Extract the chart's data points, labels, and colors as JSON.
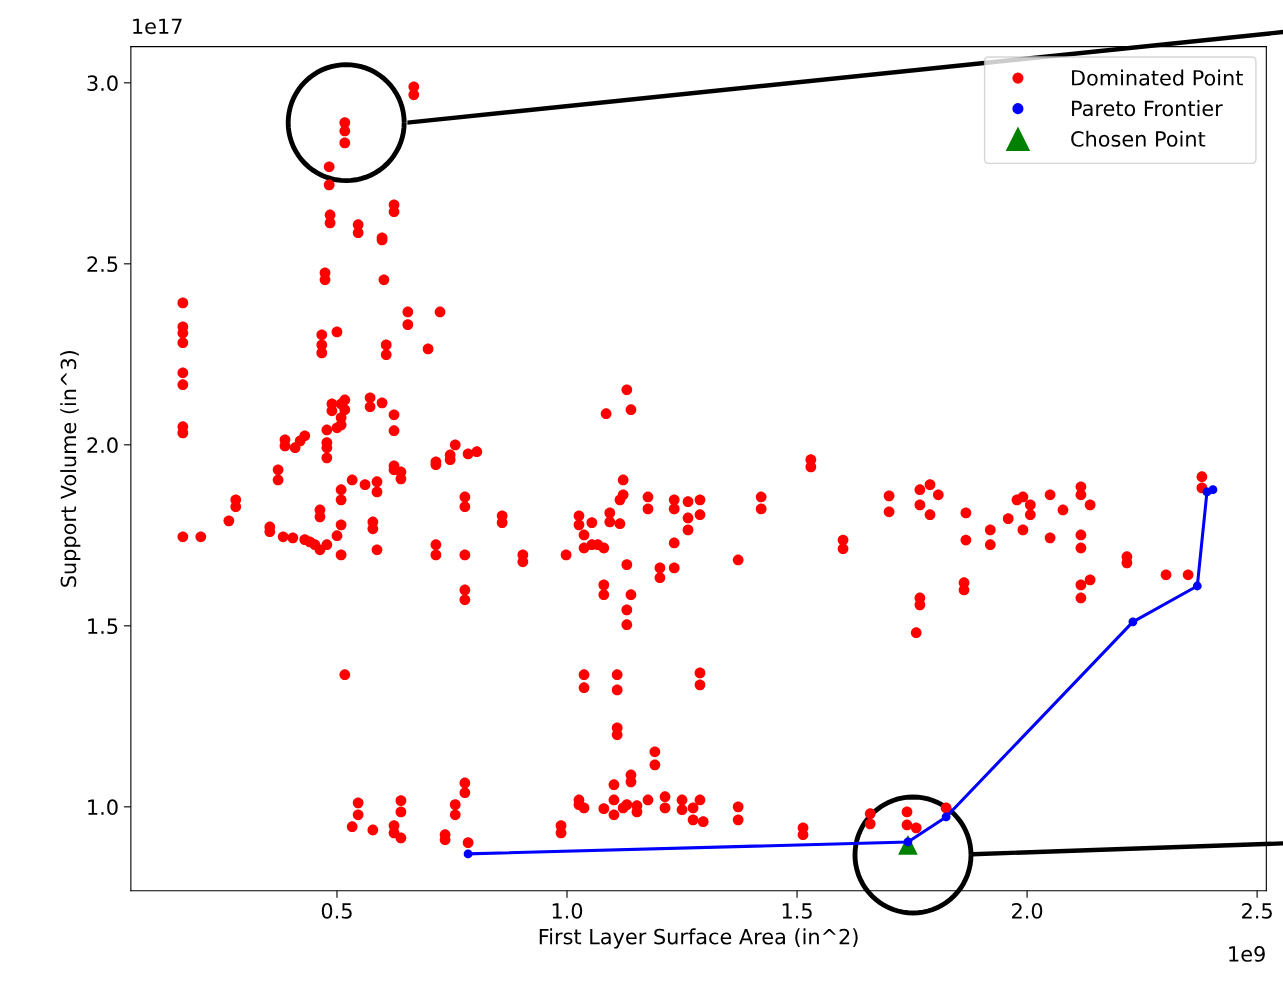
{
  "chart_data": {
    "type": "scatter",
    "xlabel": "First Layer Surface Area (in^2)",
    "ylabel": "Support Volume (in^3)",
    "annotations": [
      "1e17",
      "1e9"
    ],
    "xlim": [
      0.052,
      2.52
    ],
    "ylim": [
      0.768,
      3.1
    ],
    "xticks": [
      0.5,
      {
        "value": 1,
        "label": "1.0"
      },
      1.5,
      {
        "value": 2,
        "label": "2.0"
      },
      2.5
    ],
    "yticks": [
      {
        "value": 1,
        "label": "1.0"
      },
      1.5,
      {
        "value": 2,
        "label": "2.0"
      },
      2.5,
      {
        "value": 3,
        "label": "3.0"
      }
    ],
    "grid": false,
    "legend": "top right",
    "series": [
      {
        "name": "Dominated Point",
        "color": "#ff0000",
        "marker": "circle",
        "x": [
          0.165,
          0.165,
          0.165,
          0.165,
          0.165,
          0.165,
          0.165,
          0.165,
          0.165,
          0.204,
          0.265,
          0.28,
          0.28,
          0.354,
          0.354,
          0.372,
          0.372,
          0.383,
          0.387,
          0.387,
          0.404,
          0.409,
          0.42,
          0.43,
          0.43,
          0.441,
          0.452,
          0.463,
          0.463,
          0.463,
          0.467,
          0.467,
          0.467,
          0.474,
          0.474,
          0.478,
          0.478,
          0.478,
          0.478,
          0.478,
          0.485,
          0.485,
          0.483,
          0.483,
          0.489,
          0.489,
          0.5,
          0.5,
          0.5,
          0.509,
          0.509,
          0.509,
          0.509,
          0.509,
          0.509,
          0.509,
          0.517,
          0.517,
          0.517,
          0.517,
          0.517,
          0.517,
          0.533,
          0.533,
          0.546,
          0.546,
          0.546,
          0.546,
          0.561,
          0.572,
          0.572,
          0.578,
          0.578,
          0.578,
          0.587,
          0.587,
          0.587,
          0.598,
          0.598,
          0.598,
          0.602,
          0.607,
          0.607,
          0.624,
          0.624,
          0.624,
          0.624,
          0.624,
          0.624,
          0.624,
          0.624,
          0.639,
          0.639,
          0.639,
          0.639,
          0.639,
          0.654,
          0.654,
          0.667,
          0.667,
          0.698,
          0.724,
          0.715,
          0.715,
          0.715,
          0.715,
          0.735,
          0.735,
          0.746,
          0.746,
          0.757,
          0.757,
          0.757,
          0.778,
          0.778,
          0.778,
          0.778,
          0.778,
          0.778,
          0.778,
          0.785,
          0.785,
          0.804,
          0.859,
          0.859,
          0.904,
          0.904,
          0.987,
          0.987,
          0.998,
          1.026,
          1.026,
          1.026,
          1.026,
          1.037,
          1.037,
          1.037,
          1.037,
          1.037,
          1.054,
          1.054,
          1.067,
          1.08,
          1.08,
          1.08,
          1.08,
          1.085,
          1.093,
          1.093,
          1.102,
          1.102,
          1.102,
          1.109,
          1.109,
          1.109,
          1.109,
          1.115,
          1.115,
          1.122,
          1.122,
          1.122,
          1.13,
          1.13,
          1.13,
          1.13,
          1.13,
          1.139,
          1.139,
          1.139,
          1.139,
          1.152,
          1.152,
          1.176,
          1.176,
          1.176,
          1.191,
          1.191,
          1.202,
          1.202,
          1.213,
          1.213,
          1.233,
          1.233,
          1.233,
          1.233,
          1.25,
          1.25,
          1.263,
          1.263,
          1.263,
          1.274,
          1.274,
          1.289,
          1.289,
          1.289,
          1.289,
          1.289,
          1.296,
          1.372,
          1.372,
          1.372,
          1.422,
          1.422,
          1.513,
          1.513,
          1.53,
          1.53,
          1.6,
          1.6,
          1.659,
          1.659,
          1.7,
          1.7,
          1.739,
          1.739,
          1.759,
          1.759,
          1.767,
          1.767,
          1.767,
          1.767,
          1.789,
          1.789,
          1.807,
          1.824,
          1.867,
          1.867,
          1.863,
          1.863,
          1.92,
          1.92,
          1.959,
          1.978,
          1.991,
          1.991,
          2.007,
          2.007,
          2.05,
          2.05,
          2.078,
          2.117,
          2.117,
          2.117,
          2.117,
          2.117,
          2.117,
          2.137,
          2.137,
          2.217,
          2.217,
          2.302,
          2.35,
          2.38,
          2.38
        ],
        "values": [
          2.392,
          2.326,
          2.309,
          2.282,
          2.199,
          2.166,
          2.05,
          2.033,
          1.746,
          1.746,
          1.79,
          1.848,
          1.829,
          1.773,
          1.76,
          1.931,
          1.903,
          1.746,
          2.014,
          1.997,
          1.743,
          1.992,
          2.011,
          2.025,
          1.738,
          1.732,
          1.724,
          1.82,
          1.801,
          1.71,
          2.304,
          2.276,
          2.254,
          2.475,
          2.456,
          2.041,
          2.006,
          1.992,
          1.964,
          1.724,
          2.635,
          2.613,
          2.768,
          2.718,
          2.113,
          2.094,
          2.312,
          2.047,
          1.749,
          1.876,
          1.848,
          1.779,
          1.696,
          2.113,
          2.075,
          2.055,
          2.89,
          2.867,
          2.834,
          1.365,
          2.124,
          2.097,
          1.903,
          0.945,
          2.608,
          2.586,
          1.011,
          0.978,
          1.89,
          2.13,
          2.105,
          1.787,
          1.768,
          0.936,
          1.898,
          1.87,
          1.71,
          2.572,
          2.566,
          2.116,
          2.456,
          2.276,
          2.249,
          2.663,
          2.644,
          2.083,
          2.039,
          1.942,
          1.931,
          0.948,
          0.928,
          1.925,
          1.906,
          1.017,
          0.986,
          0.914,
          2.367,
          2.332,
          2.989,
          2.967,
          2.265,
          2.367,
          1.953,
          1.945,
          1.724,
          1.696,
          0.923,
          0.909,
          1.959,
          1.972,
          2.0,
          1.006,
          0.978,
          1.066,
          1.039,
          1.856,
          1.829,
          1.696,
          1.599,
          1.572,
          0.901,
          1.975,
          1.981,
          1.804,
          1.785,
          1.696,
          1.677,
          0.948,
          0.928,
          1.696,
          1.804,
          1.779,
          1.019,
          1.006,
          1.365,
          1.329,
          1.751,
          1.715,
          0.997,
          1.785,
          1.724,
          1.724,
          1.613,
          1.586,
          1.715,
          0.995,
          2.086,
          1.812,
          1.787,
          1.061,
          1.019,
          0.978,
          1.365,
          1.323,
          1.218,
          1.199,
          1.782,
          1.848,
          1.903,
          1.862,
          0.997,
          2.152,
          1.669,
          1.544,
          1.503,
          1.006,
          2.097,
          1.586,
          1.088,
          1.069,
          1.003,
          0.986,
          1.856,
          1.823,
          1.019,
          1.152,
          1.116,
          1.66,
          1.633,
          1.028,
          0.997,
          1.848,
          1.823,
          1.729,
          1.66,
          1.019,
          0.992,
          1.843,
          1.798,
          1.765,
          0.997,
          0.964,
          1.848,
          1.807,
          1.37,
          1.337,
          1.019,
          0.959,
          1.0,
          0.964,
          1.682,
          1.856,
          1.823,
          0.942,
          0.923,
          1.959,
          1.939,
          1.737,
          1.713,
          0.981,
          0.953,
          1.859,
          1.815,
          0.986,
          0.95,
          1.481,
          0.942,
          1.876,
          1.834,
          1.577,
          1.558,
          1.89,
          1.807,
          1.862,
          0.997,
          1.812,
          1.737,
          1.619,
          1.599,
          1.765,
          1.724,
          1.796,
          1.848,
          1.856,
          1.765,
          1.834,
          1.807,
          1.862,
          1.743,
          1.82,
          1.884,
          1.862,
          1.751,
          1.715,
          1.613,
          1.577,
          1.834,
          1.627,
          1.691,
          1.674,
          1.641,
          1.641,
          1.912,
          1.881
        ]
      },
      {
        "name": "Pareto Frontier",
        "type": "scatter",
        "color": "#0000ff",
        "marker": "circle",
        "x": [
          0.785,
          1.741,
          1.824,
          2.23,
          2.37,
          2.391,
          2.404
        ],
        "values": [
          0.87,
          0.903,
          0.972,
          1.511,
          1.61,
          1.87,
          1.876
        ]
      },
      {
        "type": "line",
        "color": "#0000ff",
        "marker": "none",
        "line_style": "solid",
        "x": [
          0.785,
          1.741,
          1.824,
          2.23,
          2.37,
          2.391,
          2.404
        ],
        "values": [
          0.87,
          0.903,
          0.972,
          1.511,
          1.61,
          1.87,
          1.876
        ]
      },
      {
        "name": "Chosen Point",
        "type": "scatter",
        "color": "#008000",
        "marker": "triangle",
        "x": [
          1.741
        ],
        "values": [
          0.895
        ]
      }
    ]
  }
}
